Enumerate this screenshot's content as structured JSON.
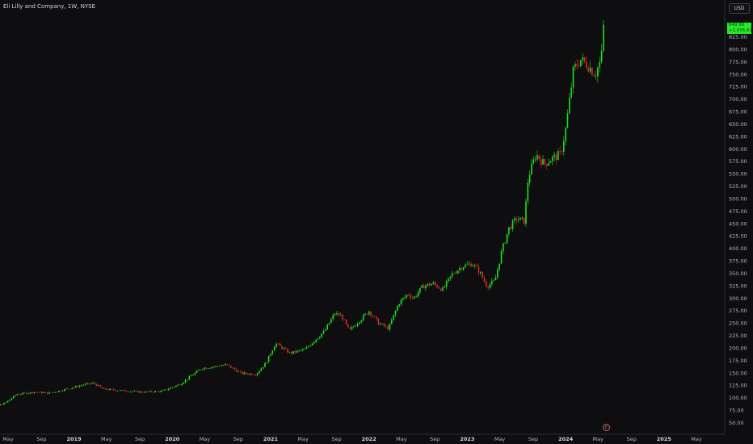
{
  "header": {
    "symbol_title": "Eli Lilly and Company, 1W, NYSE"
  },
  "toolbar": {
    "currency": "USD"
  },
  "last_price": {
    "value": "849.99",
    "change": "+1,005.61%"
  },
  "event_marker": {
    "label": "E"
  },
  "colors": {
    "background": "#0e0e10",
    "up": "#22e01e",
    "down": "#e0282a",
    "badge": "#26e826"
  },
  "chart_data": {
    "type": "candlestick",
    "title": "Eli Lilly and Company, 1W, NYSE",
    "ylim": [
      40,
      900
    ],
    "y_ticks": [
      50,
      75,
      100,
      125,
      150,
      175,
      200,
      225,
      250,
      275,
      300,
      325,
      350,
      375,
      400,
      425,
      450,
      475,
      500,
      525,
      550,
      575,
      600,
      625,
      650,
      675,
      700,
      725,
      750,
      775,
      800,
      825
    ],
    "x_ticks": [
      {
        "label": "May",
        "t": 2018.33,
        "year": false
      },
      {
        "label": "Sep",
        "t": 2018.67,
        "year": false
      },
      {
        "label": "2019",
        "t": 2019.0,
        "year": true
      },
      {
        "label": "May",
        "t": 2019.33,
        "year": false
      },
      {
        "label": "Sep",
        "t": 2019.67,
        "year": false
      },
      {
        "label": "2020",
        "t": 2020.0,
        "year": true
      },
      {
        "label": "May",
        "t": 2020.33,
        "year": false
      },
      {
        "label": "Sep",
        "t": 2020.67,
        "year": false
      },
      {
        "label": "2021",
        "t": 2021.0,
        "year": true
      },
      {
        "label": "May",
        "t": 2021.33,
        "year": false
      },
      {
        "label": "Sep",
        "t": 2021.67,
        "year": false
      },
      {
        "label": "2022",
        "t": 2022.0,
        "year": true
      },
      {
        "label": "May",
        "t": 2022.33,
        "year": false
      },
      {
        "label": "Sep",
        "t": 2022.67,
        "year": false
      },
      {
        "label": "2023",
        "t": 2023.0,
        "year": true
      },
      {
        "label": "May",
        "t": 2023.33,
        "year": false
      },
      {
        "label": "Sep",
        "t": 2023.67,
        "year": false
      },
      {
        "label": "2024",
        "t": 2024.0,
        "year": true
      },
      {
        "label": "May",
        "t": 2024.33,
        "year": false
      },
      {
        "label": "Sep",
        "t": 2024.67,
        "year": false
      },
      {
        "label": "2025",
        "t": 2025.0,
        "year": true
      },
      {
        "label": "May",
        "t": 2025.33,
        "year": false
      }
    ],
    "t_range": [
      2018.0,
      2025.6
    ],
    "weekly_close_path": [
      [
        2018.0,
        78
      ],
      [
        2018.15,
        80
      ],
      [
        2018.3,
        90
      ],
      [
        2018.42,
        108
      ],
      [
        2018.6,
        112
      ],
      [
        2018.75,
        110
      ],
      [
        2018.9,
        117
      ],
      [
        2019.1,
        127
      ],
      [
        2019.2,
        130
      ],
      [
        2019.3,
        118
      ],
      [
        2019.5,
        115
      ],
      [
        2019.7,
        112
      ],
      [
        2019.9,
        114
      ],
      [
        2020.08,
        128
      ],
      [
        2020.2,
        146
      ],
      [
        2020.3,
        160
      ],
      [
        2020.45,
        164
      ],
      [
        2020.55,
        167
      ],
      [
        2020.7,
        150
      ],
      [
        2020.85,
        148
      ],
      [
        2020.95,
        170
      ],
      [
        2021.05,
        210
      ],
      [
        2021.2,
        190
      ],
      [
        2021.35,
        198
      ],
      [
        2021.55,
        235
      ],
      [
        2021.65,
        270
      ],
      [
        2021.72,
        265
      ],
      [
        2021.8,
        235
      ],
      [
        2021.9,
        255
      ],
      [
        2022.0,
        275
      ],
      [
        2022.1,
        250
      ],
      [
        2022.2,
        240
      ],
      [
        2022.3,
        290
      ],
      [
        2022.4,
        310
      ],
      [
        2022.45,
        300
      ],
      [
        2022.55,
        325
      ],
      [
        2022.65,
        330
      ],
      [
        2022.75,
        318
      ],
      [
        2022.85,
        350
      ],
      [
        2022.95,
        365
      ],
      [
        2023.05,
        370
      ],
      [
        2023.12,
        355
      ],
      [
        2023.2,
        325
      ],
      [
        2023.28,
        335
      ],
      [
        2023.35,
        395
      ],
      [
        2023.42,
        440
      ],
      [
        2023.5,
        460
      ],
      [
        2023.58,
        455
      ],
      [
        2023.62,
        545
      ],
      [
        2023.7,
        590
      ],
      [
        2023.78,
        570
      ],
      [
        2023.85,
        580
      ],
      [
        2023.95,
        590
      ],
      [
        2024.0,
        640
      ],
      [
        2024.08,
        760
      ],
      [
        2024.15,
        780
      ],
      [
        2024.22,
        770
      ],
      [
        2024.3,
        750
      ],
      [
        2024.36,
        780
      ],
      [
        2024.4,
        849.99
      ]
    ]
  }
}
